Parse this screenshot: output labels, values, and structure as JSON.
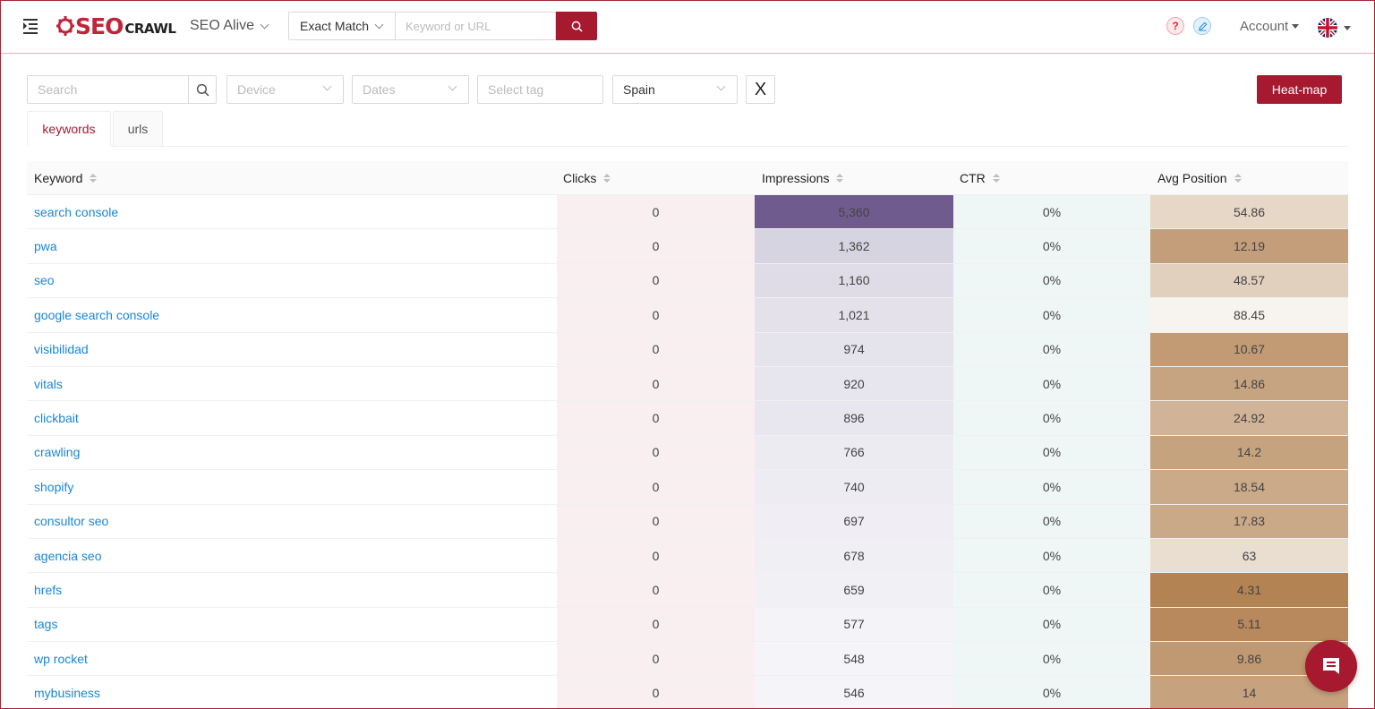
{
  "header": {
    "logo_main": "SEO",
    "logo_sub": "CRAWL",
    "project": "SEO Alive",
    "match_type": "Exact Match",
    "keyword_placeholder": "Keyword or URL",
    "help_label": "?",
    "account_label": "Account"
  },
  "filters": {
    "search_placeholder": "Search",
    "device_placeholder": "Device",
    "dates_placeholder": "Dates",
    "tag_placeholder": "Select tag",
    "country": "Spain",
    "clear_label": "X",
    "heatmap_label": "Heat-map"
  },
  "tabs": {
    "keywords": "keywords",
    "urls": "urls"
  },
  "table": {
    "headers": {
      "keyword": "Keyword",
      "clicks": "Clicks",
      "impressions": "Impressions",
      "ctr": "CTR",
      "avg_position": "Avg Position"
    },
    "rows": [
      {
        "keyword": "search console",
        "clicks": "0",
        "impressions": "5,360",
        "ctr": "0%",
        "avg_position": "54.86"
      },
      {
        "keyword": "pwa",
        "clicks": "0",
        "impressions": "1,362",
        "ctr": "0%",
        "avg_position": "12.19"
      },
      {
        "keyword": "seo",
        "clicks": "0",
        "impressions": "1,160",
        "ctr": "0%",
        "avg_position": "48.57"
      },
      {
        "keyword": "google search console",
        "clicks": "0",
        "impressions": "1,021",
        "ctr": "0%",
        "avg_position": "88.45"
      },
      {
        "keyword": "visibilidad",
        "clicks": "0",
        "impressions": "974",
        "ctr": "0%",
        "avg_position": "10.67"
      },
      {
        "keyword": "vitals",
        "clicks": "0",
        "impressions": "920",
        "ctr": "0%",
        "avg_position": "14.86"
      },
      {
        "keyword": "clickbait",
        "clicks": "0",
        "impressions": "896",
        "ctr": "0%",
        "avg_position": "24.92"
      },
      {
        "keyword": "crawling",
        "clicks": "0",
        "impressions": "766",
        "ctr": "0%",
        "avg_position": "14.2"
      },
      {
        "keyword": "shopify",
        "clicks": "0",
        "impressions": "740",
        "ctr": "0%",
        "avg_position": "18.54"
      },
      {
        "keyword": "consultor seo",
        "clicks": "0",
        "impressions": "697",
        "ctr": "0%",
        "avg_position": "17.83"
      },
      {
        "keyword": "agencia seo",
        "clicks": "0",
        "impressions": "678",
        "ctr": "0%",
        "avg_position": "63"
      },
      {
        "keyword": "hrefs",
        "clicks": "0",
        "impressions": "659",
        "ctr": "0%",
        "avg_position": "4.31"
      },
      {
        "keyword": "tags",
        "clicks": "0",
        "impressions": "577",
        "ctr": "0%",
        "avg_position": "5.11"
      },
      {
        "keyword": "wp rocket",
        "clicks": "0",
        "impressions": "548",
        "ctr": "0%",
        "avg_position": "9.86"
      },
      {
        "keyword": "mybusiness",
        "clicks": "0",
        "impressions": "546",
        "ctr": "0%",
        "avg_position": "14"
      }
    ]
  },
  "colors": {
    "brand": "#a7192f",
    "link": "#1a86d9",
    "impressions_heat_max": "#6f5b8e",
    "position_heat_best": "#b07e4d",
    "position_heat_worst": "#f7f3ee"
  },
  "icons": {
    "menu": "menu-fold-icon",
    "search": "search-icon",
    "help": "question-icon",
    "edit": "edit-icon",
    "flag": "uk-flag-icon",
    "chat": "chat-icon"
  }
}
